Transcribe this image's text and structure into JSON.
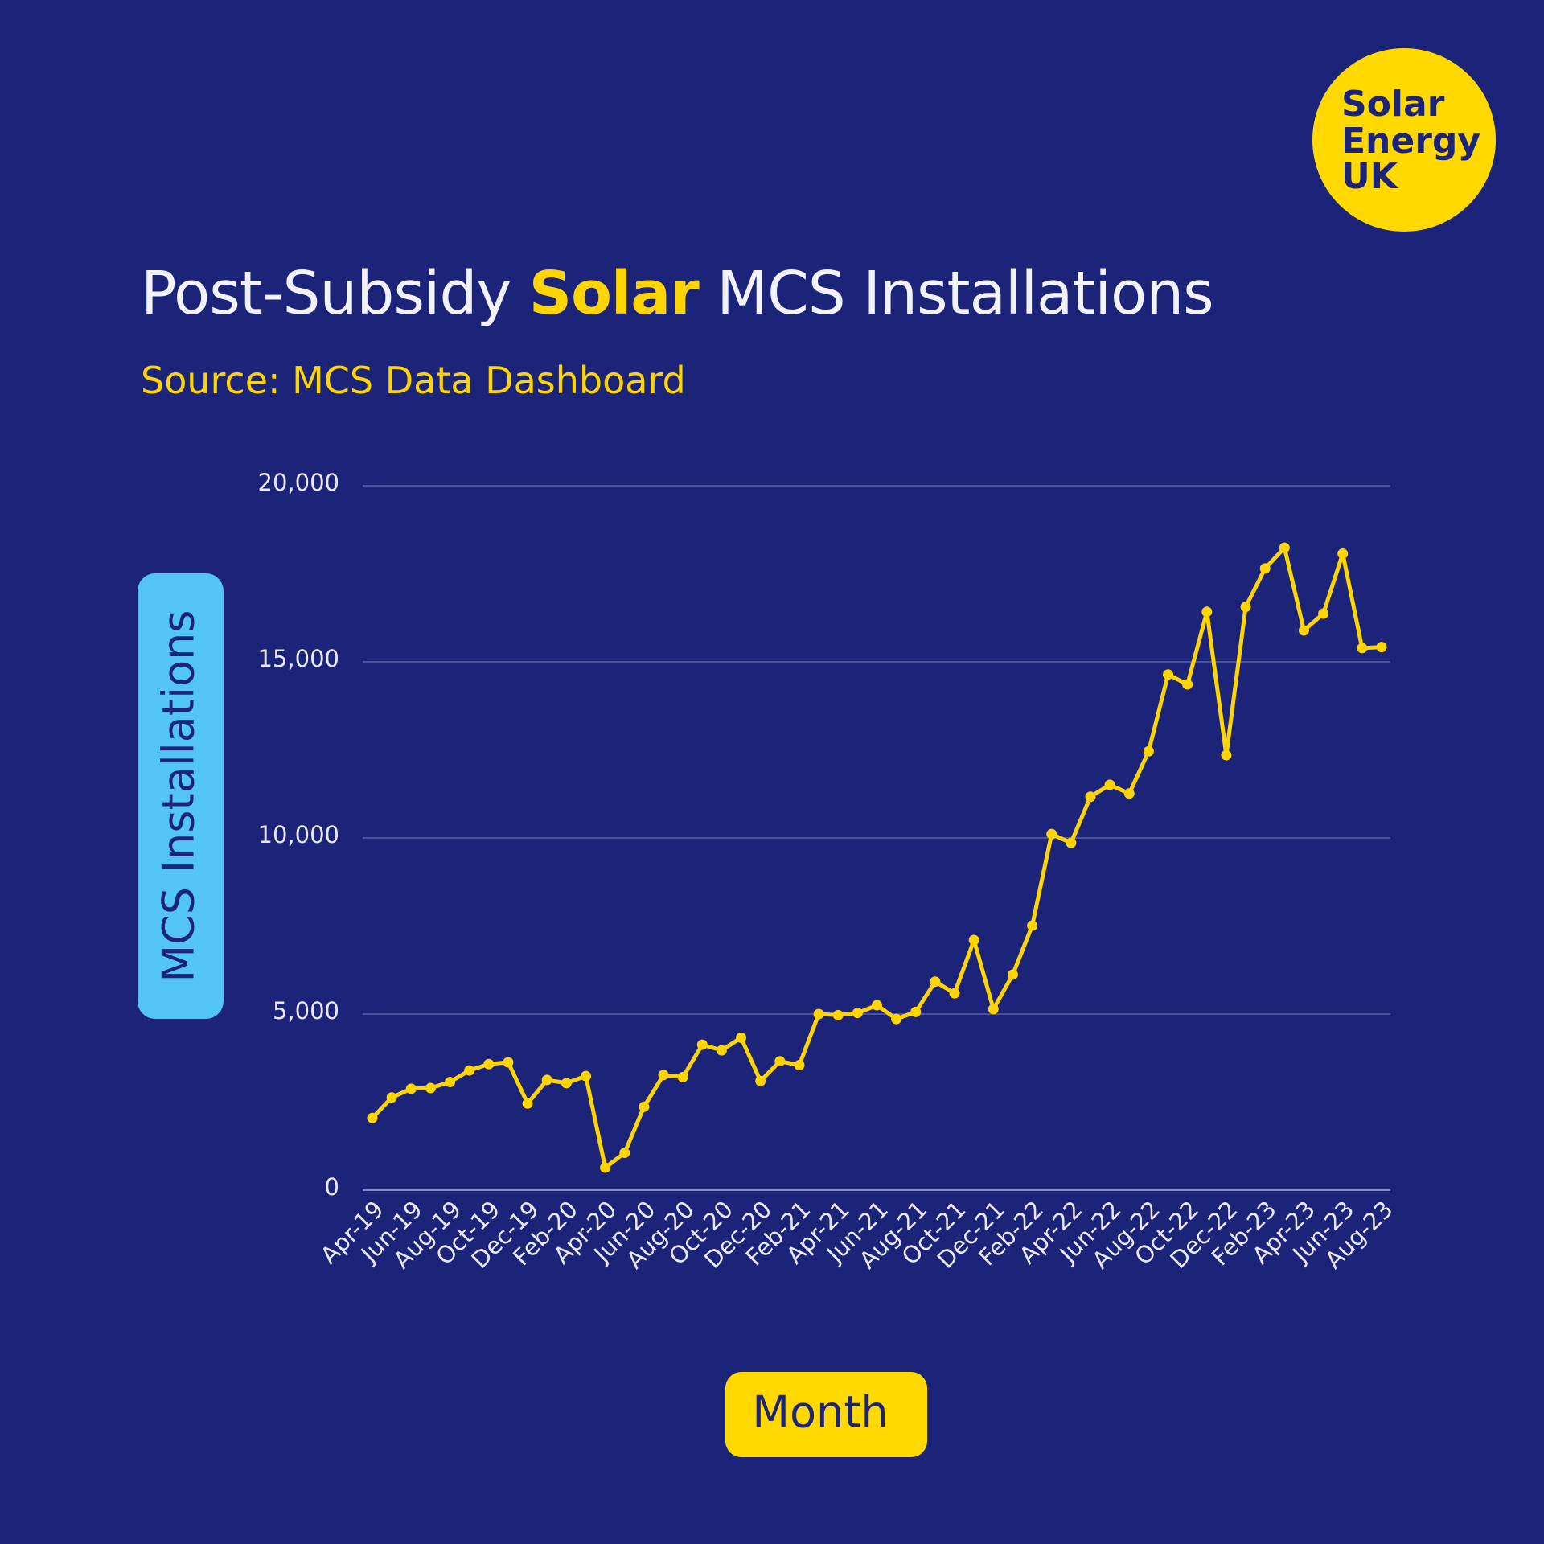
{
  "logo": [
    "Solar",
    "Energy",
    "UK"
  ],
  "chart_data": {
    "type": "line",
    "title": [
      "Post-Subsidy",
      "Solar",
      "MCS Installations"
    ],
    "subtitle": "Source: MCS Data Dashboard",
    "y_label": "MCS Installations",
    "x_label": "Month",
    "categories": [
      "Apr-19",
      null,
      "Jun-19",
      null,
      "Aug-19",
      null,
      "Oct-19",
      null,
      "Dec-19",
      null,
      "Feb-20",
      null,
      "Apr-20",
      null,
      "Jun-20",
      null,
      "Aug-20",
      null,
      "Oct-20",
      null,
      "Dec-20",
      null,
      "Feb-21",
      null,
      "Apr-21",
      null,
      "Jun-21",
      null,
      "Aug-21",
      null,
      "Oct-21",
      null,
      "Dec-21",
      null,
      "Feb-22",
      null,
      "Apr-22",
      null,
      "Jun-22",
      null,
      "Aug-22",
      null,
      "Oct-22",
      null,
      "Dec-22",
      null,
      "Feb-23",
      null,
      "Apr-23",
      null,
      "Jun-23",
      null,
      "Aug-23"
    ],
    "values": [
      2050,
      2630,
      2880,
      2900,
      3070,
      3400,
      3580,
      3630,
      2460,
      3130,
      3040,
      3240,
      640,
      1060,
      2370,
      3270,
      3210,
      4130,
      3970,
      4330,
      3100,
      3660,
      3550,
      5000,
      4970,
      5030,
      5250,
      4860,
      5060,
      5920,
      5590,
      7100,
      5140,
      6120,
      7510,
      10110,
      9860,
      11170,
      11510,
      11260,
      12460,
      14640,
      14360,
      16420,
      12350,
      16560,
      17650,
      18240,
      15890,
      16370,
      18070,
      15390,
      15420
    ],
    "color": "#ffd500",
    "ylim": [
      0,
      20000
    ],
    "yticks": [
      0,
      {
        "value": 5000,
        "label": "5,000"
      },
      {
        "value": 10000,
        "label": "10,000"
      },
      {
        "value": 15000,
        "label": "15,000"
      },
      {
        "value": 20000,
        "label": "20,000"
      }
    ],
    "grid": true
  }
}
